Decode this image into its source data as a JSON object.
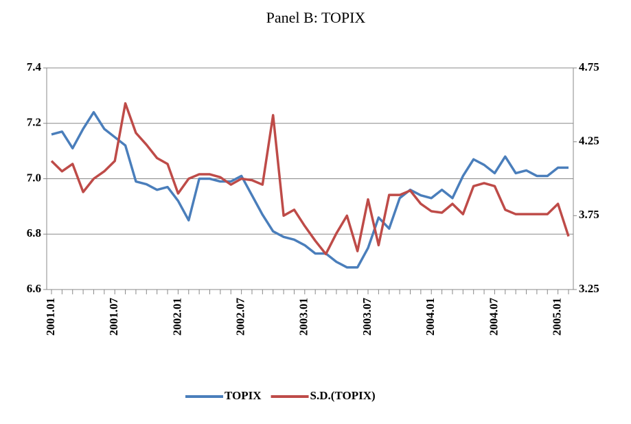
{
  "chart_data": {
    "type": "line",
    "title": "Panel B: TOPIX",
    "categories": [
      "2001.01",
      null,
      null,
      null,
      null,
      null,
      "2001.07",
      null,
      null,
      null,
      null,
      null,
      "2002.01",
      null,
      null,
      null,
      null,
      null,
      "2002.07",
      null,
      null,
      null,
      null,
      null,
      "2003.01",
      null,
      null,
      null,
      null,
      null,
      "2003.07",
      null,
      null,
      null,
      null,
      null,
      "2004.01",
      null,
      null,
      null,
      null,
      null,
      "2004.07",
      null,
      null,
      null,
      null,
      null,
      "2005.01",
      null
    ],
    "series": [
      {
        "name": "TOPIX",
        "color": "#4a7ebb",
        "values": [
          7.16,
          7.17,
          7.11,
          7.18,
          7.24,
          7.18,
          7.15,
          7.12,
          6.99,
          6.98,
          6.96,
          6.97,
          6.92,
          6.85,
          7.0,
          7.0,
          6.99,
          6.99,
          7.01,
          6.94,
          6.87,
          6.81,
          6.79,
          6.78,
          6.76,
          6.73,
          6.73,
          6.7,
          6.68,
          6.68,
          6.75,
          6.86,
          6.82,
          6.93,
          6.96,
          6.94,
          6.93,
          6.96,
          6.93,
          7.01,
          7.07,
          7.05,
          7.02,
          7.08,
          7.02,
          7.03,
          7.01,
          7.01,
          7.04,
          7.04
        ]
      },
      {
        "name": "S.D.(TOPIX)",
        "color": "#be4b48",
        "axis": "y2",
        "values": [
          4.12,
          4.05,
          4.1,
          3.91,
          4.0,
          4.05,
          4.12,
          4.51,
          4.31,
          4.23,
          4.14,
          4.1,
          3.9,
          4.0,
          4.03,
          4.03,
          4.01,
          3.96,
          4.0,
          3.99,
          3.96,
          4.43,
          3.75,
          3.79,
          3.68,
          3.58,
          3.49,
          3.63,
          3.75,
          3.51,
          3.86,
          3.55,
          3.89,
          3.89,
          3.92,
          3.83,
          3.78,
          3.77,
          3.83,
          3.76,
          3.95,
          3.97,
          3.95,
          3.79,
          3.76,
          3.76,
          3.76,
          3.76,
          3.83,
          3.61
        ]
      }
    ],
    "ylim": [
      6.6,
      7.4
    ],
    "yticks": [
      6.6,
      6.8,
      {
        "value": 7,
        "label": "7.0"
      },
      7.2,
      7.4
    ],
    "y2lim": [
      3.25,
      4.75
    ],
    "y2ticks": [
      3.25,
      3.75,
      4.25,
      4.75
    ],
    "grid": true,
    "legend": "bottom"
  }
}
